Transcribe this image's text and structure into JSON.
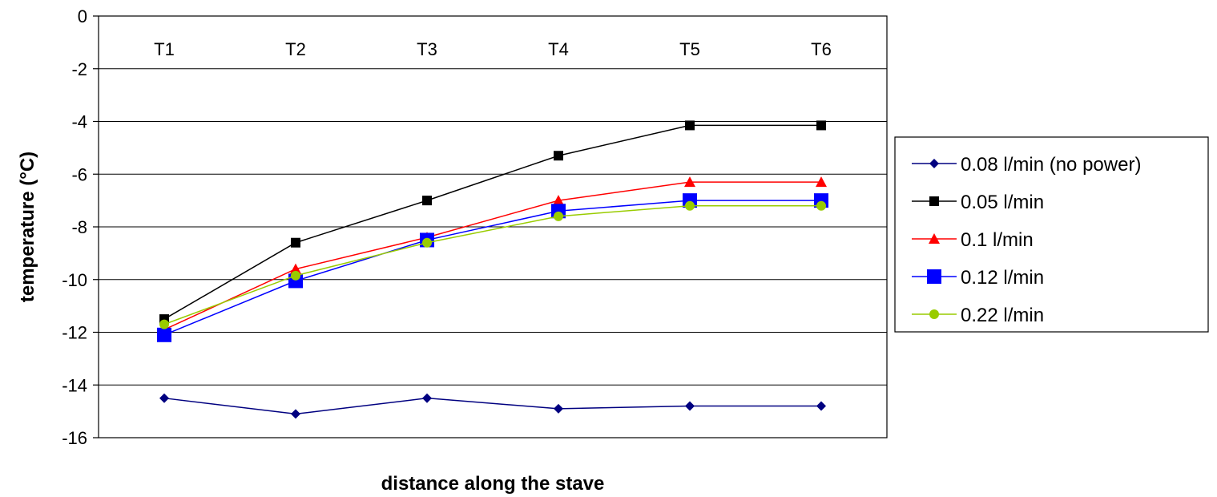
{
  "chart_data": {
    "type": "line",
    "categories": [
      "T1",
      "T2",
      "T3",
      "T4",
      "T5",
      "T6"
    ],
    "xlabel": "distance along the stave",
    "ylabel": "temperature (°C)",
    "ylim": [
      -16,
      0
    ],
    "yticks": [
      0,
      -2,
      -4,
      -6,
      -8,
      -10,
      -12,
      -14,
      -16
    ],
    "grid": true,
    "legend_position": "right",
    "series": [
      {
        "name": "0.08 l/min (no power)",
        "color": "#000080",
        "marker": "diamond",
        "values": [
          -14.5,
          -15.1,
          -14.5,
          -14.9,
          -14.8,
          -14.8
        ]
      },
      {
        "name": "0.05 l/min",
        "color": "#000000",
        "marker": "square",
        "values": [
          -11.5,
          -8.6,
          -7.0,
          -5.3,
          -4.15,
          -4.15
        ]
      },
      {
        "name": "0.1 l/min",
        "color": "#ff0000",
        "marker": "triangle",
        "values": [
          -11.9,
          -9.6,
          -8.4,
          -7.0,
          -6.3,
          -6.3
        ]
      },
      {
        "name": "0.12 l/min",
        "color": "#0000ff",
        "marker": "square-large",
        "values": [
          -12.1,
          -10.05,
          -8.5,
          -7.4,
          -7.0,
          -7.0
        ]
      },
      {
        "name": "0.22 l/min",
        "color": "#99cc00",
        "marker": "circle",
        "values": [
          -11.7,
          -9.85,
          -8.6,
          -7.6,
          -7.2,
          -7.2
        ]
      }
    ]
  }
}
